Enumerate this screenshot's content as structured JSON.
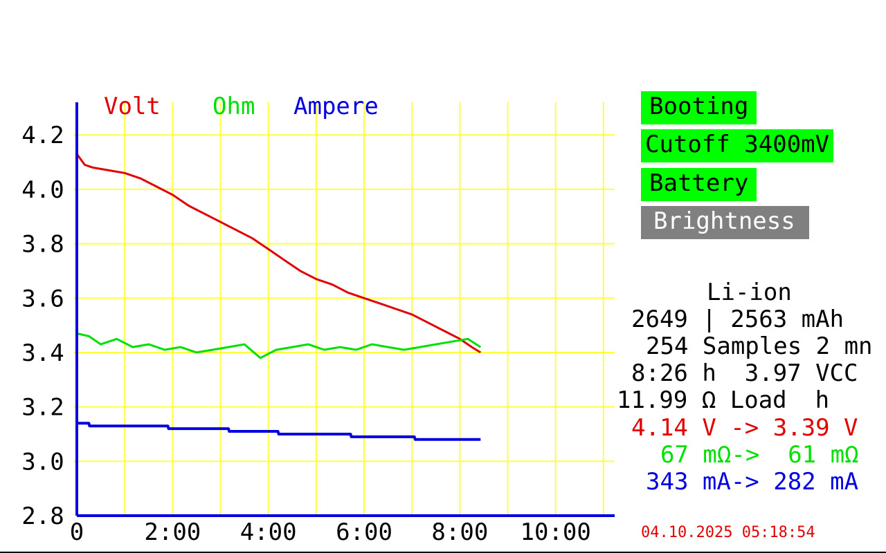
{
  "buttons": {
    "booting": "Booting",
    "cutoff": "Cutoff 3400mV",
    "battery": "Battery",
    "brightness": "Brightness"
  },
  "colors": {
    "voltage": "#e00000",
    "resistance": "#00e000",
    "current": "#0000e0",
    "grid": "#ffff40",
    "button_active": "#00ff00",
    "button_inactive": "#808080"
  },
  "info": {
    "chemistry": "Li-ion",
    "capacity": "2649 | 2563 mAh",
    "samples": "254 Samples 2 mn",
    "duration": "8:26 h  3.97 VCC",
    "load": "11.99 Ω Load  h",
    "voltage_range": "4.14 V -> 3.39 V",
    "resistance_range": "67 mΩ->  61 mΩ",
    "current_range": "343 mA-> 282 mA"
  },
  "timestamp": "04.10.2025 05:18:54",
  "chart_data": {
    "type": "line",
    "legend": [
      "Volt",
      "Ohm",
      "Ampere"
    ],
    "x_ticks": [
      "0",
      "2:00",
      "4:00",
      "6:00",
      "8:00",
      "10:00"
    ],
    "y_ticks": [
      "4.2",
      "4.0",
      "3.8",
      "3.6",
      "3.4",
      "3.2",
      "3.0",
      "2.8"
    ],
    "xlim_minutes": [
      0,
      674
    ],
    "ylim": [
      2.8,
      4.32
    ],
    "grid": true,
    "series": [
      {
        "name": "Volt",
        "x_minutes": [
          0,
          10,
          20,
          40,
          60,
          80,
          100,
          120,
          140,
          160,
          180,
          200,
          220,
          240,
          260,
          280,
          300,
          320,
          340,
          360,
          380,
          400,
          420,
          440,
          460,
          480,
          495,
          506
        ],
        "y": [
          4.13,
          4.09,
          4.08,
          4.07,
          4.06,
          4.04,
          4.01,
          3.98,
          3.94,
          3.91,
          3.88,
          3.85,
          3.82,
          3.78,
          3.74,
          3.7,
          3.67,
          3.65,
          3.62,
          3.6,
          3.58,
          3.56,
          3.54,
          3.51,
          3.48,
          3.45,
          3.42,
          3.4
        ]
      },
      {
        "name": "Ohm",
        "x_minutes": [
          0,
          15,
          30,
          50,
          70,
          90,
          110,
          130,
          150,
          170,
          190,
          210,
          230,
          250,
          270,
          290,
          310,
          330,
          350,
          370,
          390,
          410,
          430,
          450,
          470,
          490,
          506
        ],
        "y": [
          3.47,
          3.46,
          3.43,
          3.45,
          3.42,
          3.43,
          3.41,
          3.42,
          3.4,
          3.41,
          3.42,
          3.43,
          3.38,
          3.41,
          3.42,
          3.43,
          3.41,
          3.42,
          3.41,
          3.43,
          3.42,
          3.41,
          3.42,
          3.43,
          3.44,
          3.45,
          3.42
        ]
      },
      {
        "name": "Ampere",
        "x_minutes": [
          0,
          15,
          16,
          114,
          115,
          190,
          191,
          252,
          253,
          343,
          344,
          423,
          424,
          465,
          466,
          506
        ],
        "y": [
          3.14,
          3.14,
          3.13,
          3.13,
          3.12,
          3.12,
          3.11,
          3.11,
          3.1,
          3.1,
          3.09,
          3.09,
          3.08,
          3.08,
          3.08,
          3.08
        ]
      }
    ]
  }
}
